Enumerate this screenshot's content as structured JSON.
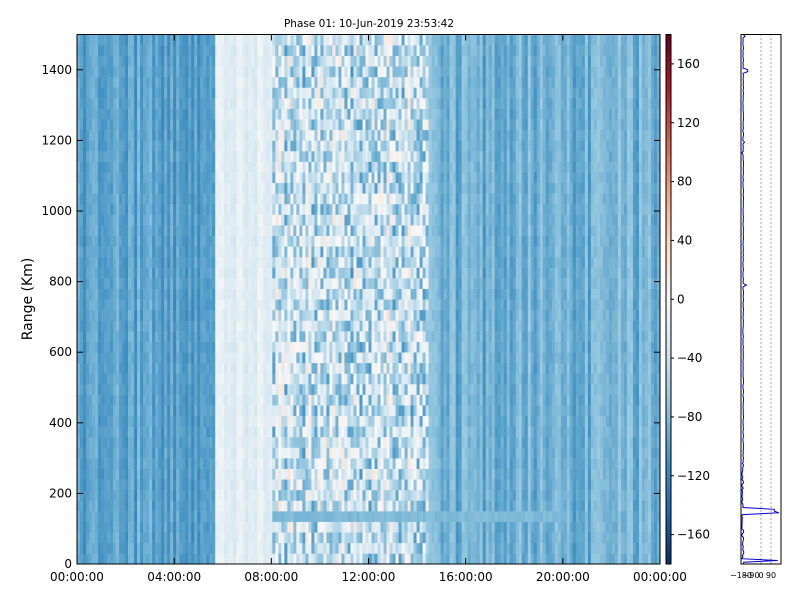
{
  "chart_data": {
    "type": "heatmap",
    "title": "Phase 01: 10-Jun-2019 23:53:42",
    "xlabel": "",
    "ylabel": "Range (Km)",
    "x_ticks": [
      "00:00:00",
      "04:00:00",
      "08:00:00",
      "12:00:00",
      "16:00:00",
      "20:00:00",
      "00:00:00"
    ],
    "x_range": [
      "00:00:00",
      "24:00:00"
    ],
    "y_ticks": [
      0,
      200,
      400,
      600,
      800,
      1000,
      1200,
      1400
    ],
    "ylim": [
      0,
      1500
    ],
    "colorbar": {
      "colormap": "RdBu_r",
      "min": -180,
      "max": 180,
      "ticks": [
        -160,
        -120,
        -80,
        -40,
        0,
        40,
        80,
        120,
        160
      ],
      "tick_labels": [
        "−160",
        "−120",
        "−80",
        "−40",
        "0",
        "40",
        "80",
        "120",
        "160"
      ]
    },
    "profile_panel": {
      "x_tick_labels": [
        "−180",
        "−90",
        "0",
        "90"
      ],
      "xlim": [
        -180,
        180
      ],
      "ylim": [
        0,
        1500
      ],
      "line_color": "#0000cc"
    },
    "features": [
      {
        "label": "",
        "x_range": [
          "05:40:00",
          "08:00:00"
        ],
        "y_range": [
          0,
          1500
        ],
        "value": -20
      },
      {
        "label": "",
        "x_range": [
          "08:00:00",
          "14:30:00"
        ],
        "y_range": [
          0,
          1500
        ],
        "value": -40
      },
      {
        "label": "",
        "x_range": [
          "08:00:00",
          "20:00:00"
        ],
        "y_range": [
          110,
          160
        ],
        "value": -80
      }
    ]
  }
}
